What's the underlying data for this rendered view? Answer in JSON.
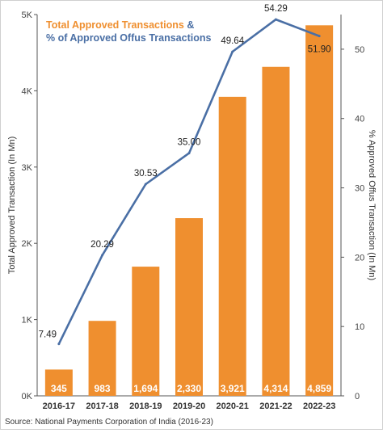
{
  "chart_data": {
    "type": "bar",
    "categories": [
      "2016-17",
      "2017-18",
      "2018-19",
      "2019-20",
      "2020-21",
      "2021-22",
      "2022-23"
    ],
    "series": [
      {
        "name": "Total Approved Transactions",
        "kind": "bar",
        "axis": "left",
        "color": "#ef8f2f",
        "values": [
          345,
          983,
          1694,
          2330,
          3921,
          4314,
          4859
        ],
        "labels": [
          "345",
          "983",
          "1,694",
          "2,330",
          "3,921",
          "4,314",
          "4,859"
        ]
      },
      {
        "name": "% of Approved Offus Transactions",
        "kind": "line",
        "axis": "right",
        "color": "#4a6fa5",
        "values": [
          7.49,
          20.29,
          30.53,
          35.0,
          49.64,
          54.29,
          51.9
        ],
        "labels": [
          "7.49",
          "20.29",
          "30.53",
          "35.00",
          "49.64",
          "54.29",
          "51.90"
        ]
      }
    ],
    "legend": {
      "line1_text": "Total Approved Transactions",
      "amp": " &",
      "line2_text": "% of Approved Offus Transactions",
      "placement": "top-left"
    },
    "ylabel_left": "Total Approved Transaction (In Mn)",
    "ylabel_right": "% Approved Offus Transaction (In Mn)",
    "ylim_left": [
      0,
      5000
    ],
    "ylim_right": [
      0,
      55
    ],
    "yticks_left": [
      {
        "value": 0,
        "label": "0K"
      },
      {
        "value": 1000,
        "label": "1K"
      },
      {
        "value": 2000,
        "label": "2K"
      },
      {
        "value": 3000,
        "label": "3K"
      },
      {
        "value": 4000,
        "label": "4K"
      },
      {
        "value": 5000,
        "label": "5K"
      }
    ],
    "yticks_right": [
      {
        "value": 0,
        "label": "0"
      },
      {
        "value": 10,
        "label": "10"
      },
      {
        "value": 20,
        "label": "20"
      },
      {
        "value": 30,
        "label": "30"
      },
      {
        "value": 40,
        "label": "40"
      },
      {
        "value": 50,
        "label": "50"
      }
    ],
    "grid": false
  },
  "source": "Source: National Payments Corporation of India (2016-23)"
}
